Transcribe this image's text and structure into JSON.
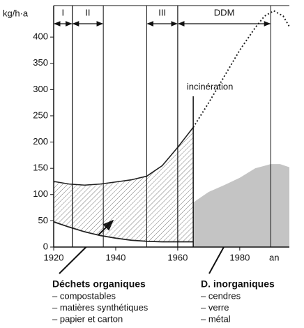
{
  "chart_data": {
    "type": "line",
    "ylabel": "kg/h·a",
    "xlabel": "an",
    "xlim": [
      1920,
      1996
    ],
    "ylim": [
      0,
      460
    ],
    "xticks": [
      1920,
      1940,
      1960,
      1980
    ],
    "yticks": [
      0,
      50,
      100,
      150,
      200,
      250,
      300,
      350,
      400
    ],
    "periods": [
      {
        "label": "I",
        "start": 1920,
        "end": 1926
      },
      {
        "label": "II",
        "start": 1926,
        "end": 1936
      },
      {
        "label": "III",
        "start": 1950,
        "end": 1960
      },
      {
        "label": "DDM",
        "start": 1960,
        "end": 1990
      }
    ],
    "series": [
      {
        "style": "hatched",
        "color": "#222",
        "x": [
          1920,
          1925,
          1930,
          1935,
          1940,
          1945,
          1950,
          1955,
          1960,
          1965
        ],
        "values": [
          125,
          120,
          118,
          120,
          124,
          128,
          135,
          155,
          190,
          228
        ]
      },
      {
        "style": "dotted",
        "color": "#222",
        "x": [
          1965,
          1970,
          1975,
          1980,
          1985,
          1988,
          1991,
          1994,
          1996
        ],
        "values": [
          228,
          275,
          325,
          375,
          418,
          440,
          450,
          440,
          420
        ]
      },
      {
        "style": "solid",
        "color": "#222",
        "x": [
          1920,
          1925,
          1930,
          1935,
          1940,
          1945,
          1950,
          1955,
          1960,
          1965
        ],
        "values": [
          48,
          38,
          29,
          22,
          17,
          13,
          11,
          10,
          10,
          10
        ]
      },
      {
        "style": "area",
        "color": "#c4c4c4",
        "x": [
          1965,
          1970,
          1975,
          1980,
          1985,
          1990,
          1993,
          1996
        ],
        "values": [
          85,
          105,
          118,
          132,
          150,
          158,
          158,
          152
        ]
      }
    ],
    "annotations": [
      {
        "text": "incinération",
        "x": 1965
      }
    ],
    "groups": [
      {
        "title": "Déchets organiques",
        "items": [
          "– compostables",
          "– matières synthétiques",
          "– papier et carton"
        ]
      },
      {
        "title": "D. inorganiques",
        "items": [
          "– cendres",
          "– verre",
          "– métal"
        ]
      }
    ]
  }
}
